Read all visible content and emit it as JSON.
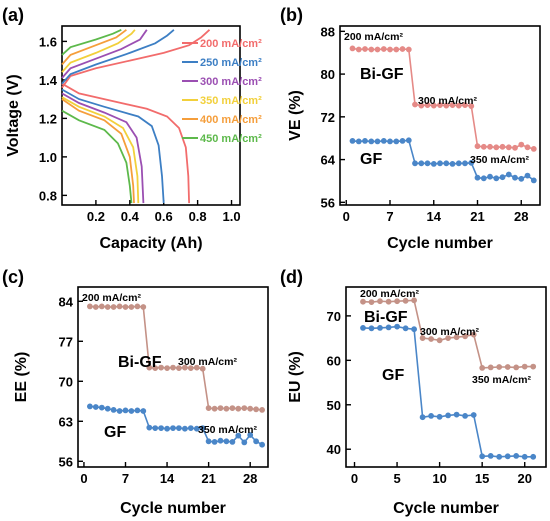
{
  "chart_data": [
    {
      "panel": "(a)",
      "type": "line",
      "xlabel": "Capacity (Ah)",
      "ylabel": "Voltage (V)",
      "xlim": [
        0.0,
        1.05
      ],
      "ylim": [
        0.75,
        1.68
      ],
      "xticks": [
        0.2,
        0.4,
        0.6,
        0.8,
        1.0
      ],
      "xtick_labels": [
        "0.2",
        "0.4",
        "0.6",
        "0.8",
        "1.0"
      ],
      "yticks": [
        0.8,
        1.0,
        1.2,
        1.4,
        1.6
      ],
      "ytick_labels": [
        "0.8",
        "1.0",
        "1.2",
        "1.4",
        "1.6"
      ],
      "legend_position": "right",
      "series": [
        {
          "name": "200 mA/cm²",
          "color": "#F26C6C",
          "charge": [
            [
              0.0,
              1.36
            ],
            [
              0.05,
              1.42
            ],
            [
              0.2,
              1.46
            ],
            [
              0.4,
              1.5
            ],
            [
              0.6,
              1.54
            ],
            [
              0.75,
              1.58
            ],
            [
              0.82,
              1.62
            ],
            [
              0.87,
              1.66
            ]
          ],
          "discharge": [
            [
              0.0,
              1.38
            ],
            [
              0.1,
              1.33
            ],
            [
              0.3,
              1.29
            ],
            [
              0.5,
              1.25
            ],
            [
              0.62,
              1.21
            ],
            [
              0.69,
              1.15
            ],
            [
              0.73,
              1.05
            ],
            [
              0.745,
              0.9
            ],
            [
              0.75,
              0.76
            ]
          ]
        },
        {
          "name": "250 mA/cm²",
          "color": "#3D7FC4",
          "charge": [
            [
              0.0,
              1.38
            ],
            [
              0.05,
              1.43
            ],
            [
              0.2,
              1.48
            ],
            [
              0.4,
              1.54
            ],
            [
              0.55,
              1.59
            ],
            [
              0.62,
              1.63
            ],
            [
              0.66,
              1.66
            ]
          ],
          "discharge": [
            [
              0.0,
              1.35
            ],
            [
              0.1,
              1.3
            ],
            [
              0.25,
              1.26
            ],
            [
              0.45,
              1.21
            ],
            [
              0.53,
              1.16
            ],
            [
              0.57,
              1.06
            ],
            [
              0.59,
              0.9
            ],
            [
              0.6,
              0.76
            ]
          ]
        },
        {
          "name": "300 mA/cm²",
          "color": "#9B4FB2",
          "charge": [
            [
              0.0,
              1.41
            ],
            [
              0.05,
              1.46
            ],
            [
              0.2,
              1.51
            ],
            [
              0.35,
              1.56
            ],
            [
              0.46,
              1.61
            ],
            [
              0.5,
              1.66
            ]
          ],
          "discharge": [
            [
              0.0,
              1.33
            ],
            [
              0.1,
              1.28
            ],
            [
              0.25,
              1.23
            ],
            [
              0.38,
              1.18
            ],
            [
              0.44,
              1.1
            ],
            [
              0.47,
              0.95
            ],
            [
              0.48,
              0.76
            ]
          ]
        },
        {
          "name": "350 mA/cm²",
          "color": "#F2D03B",
          "charge": [
            [
              0.0,
              1.44
            ],
            [
              0.05,
              1.49
            ],
            [
              0.2,
              1.54
            ],
            [
              0.33,
              1.59
            ],
            [
              0.41,
              1.64
            ],
            [
              0.43,
              1.66
            ]
          ],
          "discharge": [
            [
              0.0,
              1.31
            ],
            [
              0.1,
              1.26
            ],
            [
              0.25,
              1.21
            ],
            [
              0.36,
              1.15
            ],
            [
              0.42,
              1.05
            ],
            [
              0.445,
              0.9
            ],
            [
              0.45,
              0.76
            ]
          ]
        },
        {
          "name": "400 mA/cm²",
          "color": "#F59E3B",
          "charge": [
            [
              0.0,
              1.48
            ],
            [
              0.05,
              1.53
            ],
            [
              0.2,
              1.58
            ],
            [
              0.32,
              1.62
            ],
            [
              0.38,
              1.66
            ]
          ],
          "discharge": [
            [
              0.0,
              1.3
            ],
            [
              0.1,
              1.24
            ],
            [
              0.25,
              1.19
            ],
            [
              0.35,
              1.12
            ],
            [
              0.4,
              1.0
            ],
            [
              0.42,
              0.85
            ],
            [
              0.425,
              0.76
            ]
          ]
        },
        {
          "name": "450 mA/cm²",
          "color": "#5DB94B",
          "charge": [
            [
              0.0,
              1.53
            ],
            [
              0.05,
              1.57
            ],
            [
              0.2,
              1.61
            ],
            [
              0.3,
              1.64
            ],
            [
              0.35,
              1.66
            ]
          ],
          "discharge": [
            [
              0.0,
              1.24
            ],
            [
              0.1,
              1.19
            ],
            [
              0.25,
              1.14
            ],
            [
              0.33,
              1.07
            ],
            [
              0.38,
              0.97
            ],
            [
              0.4,
              0.85
            ],
            [
              0.41,
              0.76
            ]
          ]
        }
      ]
    },
    {
      "panel": "(b)",
      "type": "line",
      "xlabel": "Cycle number",
      "ylabel": "VE (%)",
      "xlim": [
        -1,
        31
      ],
      "ylim": [
        55.5,
        89
      ],
      "xticks": [
        0,
        7,
        14,
        21,
        28
      ],
      "xtick_labels": [
        "0",
        "7",
        "14",
        "21",
        "28"
      ],
      "yticks": [
        56,
        64,
        72,
        80,
        88
      ],
      "ytick_labels": [
        "56",
        "64",
        "72",
        "80",
        "88"
      ],
      "annotations": [
        "200 mA/cm²",
        "300 mA/cm²",
        "350 mA/cm²"
      ],
      "series": [
        {
          "name": "Bi-GF",
          "color": "#E58A87",
          "x": [
            1,
            2,
            3,
            4,
            5,
            6,
            7,
            8,
            9,
            10,
            11,
            12,
            13,
            14,
            15,
            16,
            17,
            18,
            19,
            20,
            21,
            22,
            23,
            24,
            25,
            26,
            27,
            28,
            29,
            30
          ],
          "values": [
            84.8,
            84.6,
            84.7,
            84.6,
            84.6,
            84.7,
            84.6,
            84.6,
            84.7,
            84.6,
            74.3,
            74.1,
            74.2,
            74.1,
            74.2,
            74.1,
            74.2,
            74.1,
            74.2,
            74.0,
            66.5,
            66.4,
            66.4,
            66.3,
            66.4,
            66.3,
            66.2,
            66.8,
            66.3,
            66.0
          ]
        },
        {
          "name": "GF",
          "color": "#4A86C8",
          "x": [
            1,
            2,
            3,
            4,
            5,
            6,
            7,
            8,
            9,
            10,
            11,
            12,
            13,
            14,
            15,
            16,
            17,
            18,
            19,
            20,
            21,
            22,
            23,
            24,
            25,
            26,
            27,
            28,
            29,
            30
          ],
          "values": [
            67.5,
            67.4,
            67.5,
            67.4,
            67.4,
            67.5,
            67.4,
            67.4,
            67.5,
            67.6,
            63.3,
            63.3,
            63.3,
            63.2,
            63.3,
            63.3,
            63.2,
            63.3,
            63.3,
            63.4,
            60.6,
            60.5,
            60.8,
            60.5,
            60.7,
            61.2,
            60.6,
            60.4,
            61.0,
            60.1
          ]
        }
      ]
    },
    {
      "panel": "(c)",
      "type": "line",
      "xlabel": "Cycle number",
      "ylabel": "EE (%)",
      "xlim": [
        -1,
        31
      ],
      "ylim": [
        55,
        86.5
      ],
      "xticks": [
        0,
        7,
        14,
        21,
        28
      ],
      "xtick_labels": [
        "0",
        "7",
        "14",
        "21",
        "28"
      ],
      "yticks": [
        56,
        63,
        70,
        77,
        84
      ],
      "ytick_labels": [
        "56",
        "63",
        "70",
        "77",
        "84"
      ],
      "annotations": [
        "200 mA/cm²",
        "300 mA/cm²",
        "350 mA/cm²"
      ],
      "series": [
        {
          "name": "Bi-GF",
          "color": "#C49287",
          "x": [
            1,
            2,
            3,
            4,
            5,
            6,
            7,
            8,
            9,
            10,
            11,
            12,
            13,
            14,
            15,
            16,
            17,
            18,
            19,
            20,
            21,
            22,
            23,
            24,
            25,
            26,
            27,
            28,
            29,
            30
          ],
          "values": [
            83.1,
            83.0,
            83.1,
            83.0,
            83.0,
            83.1,
            83.0,
            83.0,
            83.1,
            83.0,
            72.4,
            72.3,
            72.4,
            72.3,
            72.4,
            72.3,
            72.4,
            72.3,
            72.4,
            72.2,
            65.3,
            65.2,
            65.3,
            65.2,
            65.3,
            65.2,
            65.3,
            65.2,
            65.1,
            65.0
          ]
        },
        {
          "name": "GF",
          "color": "#4A86C8",
          "x": [
            1,
            2,
            3,
            4,
            5,
            6,
            7,
            8,
            9,
            10,
            11,
            12,
            13,
            14,
            15,
            16,
            17,
            18,
            19,
            20,
            21,
            22,
            23,
            24,
            25,
            26,
            27,
            28,
            29,
            30
          ],
          "values": [
            65.6,
            65.5,
            65.4,
            65.2,
            65.0,
            64.8,
            64.9,
            64.8,
            64.9,
            64.8,
            61.9,
            61.8,
            61.8,
            61.7,
            61.8,
            61.8,
            61.7,
            61.8,
            61.7,
            61.8,
            59.5,
            59.4,
            59.6,
            59.5,
            59.4,
            60.5,
            59.3,
            60.6,
            59.5,
            58.9
          ]
        }
      ]
    },
    {
      "panel": "(d)",
      "type": "line",
      "xlabel": "Cycle number",
      "ylabel": "EU (%)",
      "xlim": [
        -1,
        22.5
      ],
      "ylim": [
        36,
        76.5
      ],
      "xticks": [
        0,
        5,
        10,
        15,
        20
      ],
      "xtick_labels": [
        "0",
        "5",
        "10",
        "15",
        "20"
      ],
      "yticks": [
        40,
        50,
        60,
        70
      ],
      "ytick_labels": [
        "40",
        "50",
        "60",
        "70"
      ],
      "annotations": [
        "200 mA/cm²",
        "300 mA/cm²",
        "350 mA/cm²"
      ],
      "series": [
        {
          "name": "Bi-GF",
          "color": "#C49287",
          "x": [
            1,
            2,
            3,
            4,
            5,
            6,
            7,
            8,
            9,
            10,
            11,
            12,
            13,
            14,
            15,
            16,
            17,
            18,
            19,
            20,
            21
          ],
          "values": [
            73.2,
            73.1,
            73.3,
            73.2,
            73.3,
            73.4,
            73.5,
            65.0,
            64.8,
            64.5,
            65.0,
            65.2,
            65.4,
            65.8,
            58.3,
            58.4,
            58.5,
            58.5,
            58.4,
            58.6,
            58.6
          ]
        },
        {
          "name": "GF",
          "color": "#4A86C8",
          "x": [
            1,
            2,
            3,
            4,
            5,
            6,
            7,
            8,
            9,
            10,
            11,
            12,
            13,
            14,
            15,
            16,
            17,
            18,
            19,
            20,
            21
          ],
          "values": [
            67.3,
            67.2,
            67.3,
            67.4,
            67.6,
            67.2,
            67.0,
            47.2,
            47.5,
            47.3,
            47.6,
            47.8,
            47.5,
            47.7,
            38.4,
            38.5,
            38.3,
            38.4,
            38.5,
            38.3,
            38.3
          ]
        }
      ]
    }
  ]
}
